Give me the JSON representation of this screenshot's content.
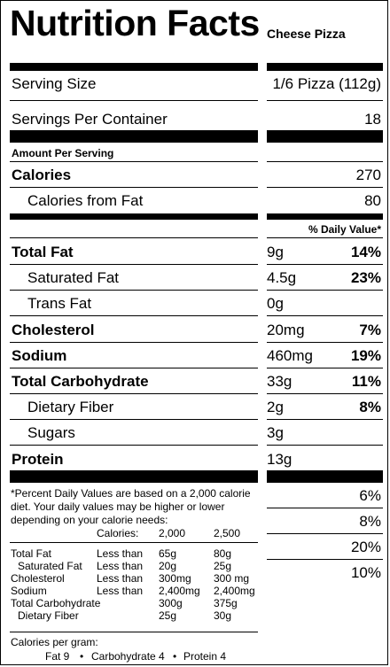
{
  "header": {
    "title": "Nutrition Facts",
    "product": "Cheese Pizza"
  },
  "serving": {
    "size_label": "Serving Size",
    "size_value": "1/6 Pizza (112g)",
    "per_container_label": "Servings Per Container",
    "per_container_value": "18"
  },
  "amount_per_serving": "Amount Per Serving",
  "calories": {
    "label": "Calories",
    "value": "270"
  },
  "calories_from_fat": {
    "label": "Calories from Fat",
    "value": "80"
  },
  "dv_header": "% Daily Value*",
  "nutrients": [
    {
      "label": "Total Fat",
      "amount": "9g",
      "dv": "14%"
    },
    {
      "label": "Saturated Fat",
      "amount": "4.5g",
      "dv": "23%"
    },
    {
      "label": "Trans Fat",
      "amount": "0g",
      "dv": ""
    },
    {
      "label": "Cholesterol",
      "amount": "20mg",
      "dv": "7%"
    },
    {
      "label": "Sodium",
      "amount": "460mg",
      "dv": "19%"
    },
    {
      "label": "Total Carbohydrate",
      "amount": "33g",
      "dv": "11%"
    },
    {
      "label": "Dietary Fiber",
      "amount": "2g",
      "dv": "8%"
    },
    {
      "label": "Sugars",
      "amount": "3g",
      "dv": ""
    },
    {
      "label": "Protein",
      "amount": "13g",
      "dv": ""
    }
  ],
  "vitamins": [
    "6%",
    "8%",
    "20%",
    "10%"
  ],
  "footnote": {
    "line1": "*Percent Daily Values are based on a 2,000 calorie",
    "line2": "diet. Your daily values may be higher or lower",
    "line3": "depending on your calorie needs:",
    "header": {
      "label": "Calories:",
      "c1": "2,000",
      "c2": "2,500"
    },
    "rows": [
      {
        "label": "Total Fat",
        "cond": "Less than",
        "c1": "65g",
        "c2": "80g"
      },
      {
        "label": "Saturated Fat",
        "cond": "Less than",
        "c1": "20g",
        "c2": "25g"
      },
      {
        "label": "Cholesterol",
        "cond": "Less than",
        "c1": "300mg",
        "c2": "300 mg"
      },
      {
        "label": "Sodium",
        "cond": "Less than",
        "c1": "2,400mg",
        "c2": "2,400mg"
      },
      {
        "label": "Total Carbohydrate",
        "cond": "",
        "c1": "300g",
        "c2": "375g"
      },
      {
        "label": "Dietary Fiber",
        "cond": "",
        "c1": "25g",
        "c2": "30g"
      }
    ],
    "cal_per_gram": "Calories per gram:",
    "fat": "Fat 9",
    "carb": "Carbohydrate 4",
    "protein": "Protein 4",
    "bullet": "•"
  }
}
